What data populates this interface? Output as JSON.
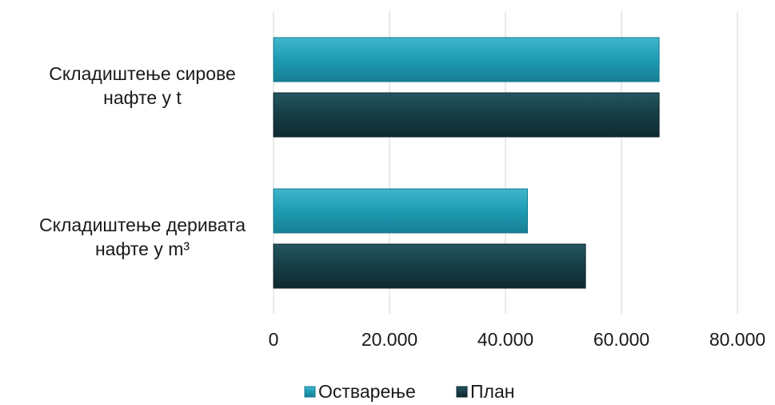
{
  "chart_data": {
    "type": "bar",
    "orientation": "horizontal",
    "categories": [
      [
        "Складиштење сирове",
        "нафте у t"
      ],
      [
        "Складиштење деривата",
        "нафте у m³"
      ]
    ],
    "series": [
      {
        "name": "Остварење",
        "color": "#1e9bb3",
        "values": [
          66500,
          43800
        ]
      },
      {
        "name": "План",
        "color": "#173d45",
        "values": [
          66500,
          53800
        ]
      }
    ],
    "xlim": [
      0,
      80000
    ],
    "xticks": [
      0,
      20000,
      40000,
      60000,
      80000
    ],
    "xtick_labels": [
      "0",
      "20.000",
      "40.000",
      "60.000",
      "80.000"
    ],
    "grid": true,
    "legend_position": "bottom"
  }
}
